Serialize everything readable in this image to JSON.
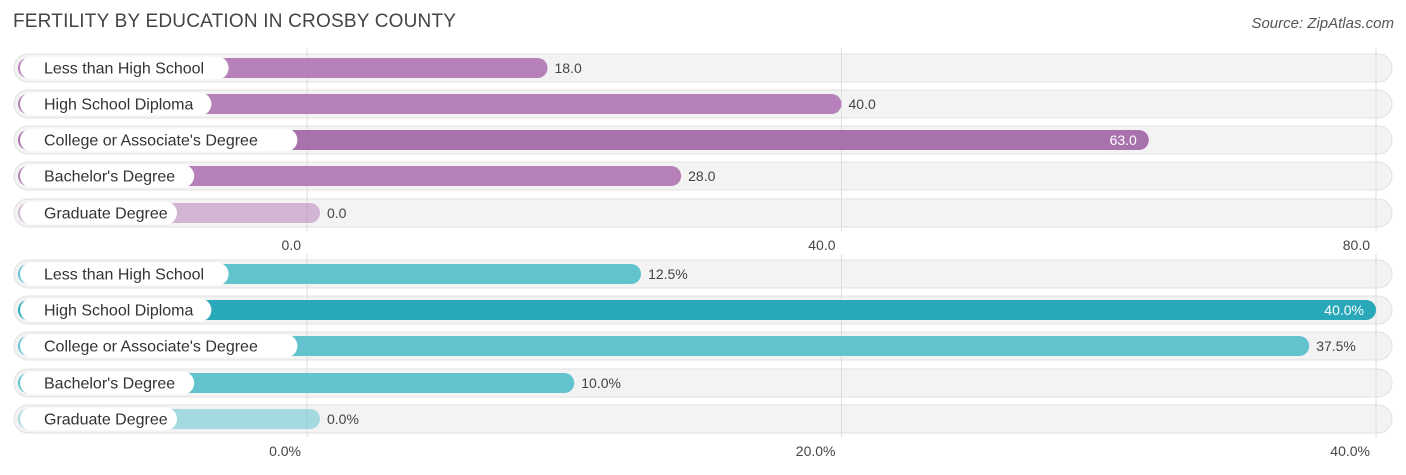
{
  "title": "FERTILITY BY EDUCATION IN CROSBY COUNTY",
  "source": "Source: ZipAtlas.com",
  "chart_data": [
    {
      "type": "bar",
      "orientation": "horizontal",
      "categories": [
        "Less than High School",
        "High School Diploma",
        "College or Associate's Degree",
        "Bachelor's Degree",
        "Graduate Degree"
      ],
      "values": [
        18.0,
        40.0,
        63.0,
        28.0,
        0.0
      ],
      "value_labels": [
        "18.0",
        "40.0",
        "63.0",
        "28.0",
        "0.0"
      ],
      "xlim": [
        0,
        80
      ],
      "ticks": [
        "0.0",
        "40.0",
        "80.0"
      ],
      "color": "#b681b8",
      "highlight_color": "#a873ad",
      "grid": true
    },
    {
      "type": "bar",
      "orientation": "horizontal",
      "categories": [
        "Less than High School",
        "High School Diploma",
        "College or Associate's Degree",
        "Bachelor's Degree",
        "Graduate Degree"
      ],
      "values": [
        12.5,
        40.0,
        37.5,
        10.0,
        0.0
      ],
      "value_labels": [
        "12.5%",
        "40.0%",
        "37.5%",
        "10.0%",
        "0.0%"
      ],
      "xlim": [
        0,
        40
      ],
      "ticks": [
        "0.0%",
        "20.0%",
        "40.0%"
      ],
      "color": "#62c3cf",
      "highlight_color": "#28a8b8",
      "grid": true
    }
  ]
}
